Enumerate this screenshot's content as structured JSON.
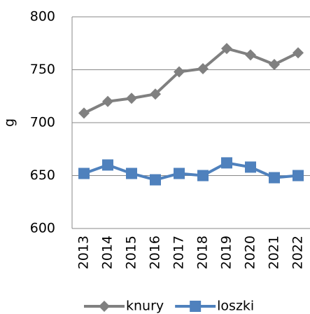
{
  "chart_data": {
    "type": "line",
    "y_label": "g",
    "categories": [
      "2013",
      "2014",
      "2015",
      "2016",
      "2017",
      "2018",
      "2019",
      "2020",
      "2021",
      "2022"
    ],
    "series": [
      {
        "name": "knury",
        "color": "#808080",
        "marker": "diamond",
        "values": [
          709,
          720,
          723,
          727,
          748,
          751,
          770,
          764,
          755,
          766
        ]
      },
      {
        "name": "loszki",
        "color": "#4f81bd",
        "marker": "square",
        "values": [
          652,
          660,
          652,
          646,
          652,
          650,
          662,
          658,
          648,
          650
        ]
      }
    ],
    "ylim": [
      600,
      800
    ],
    "yticks": [
      600,
      650,
      700,
      750,
      800
    ],
    "grid": true
  }
}
